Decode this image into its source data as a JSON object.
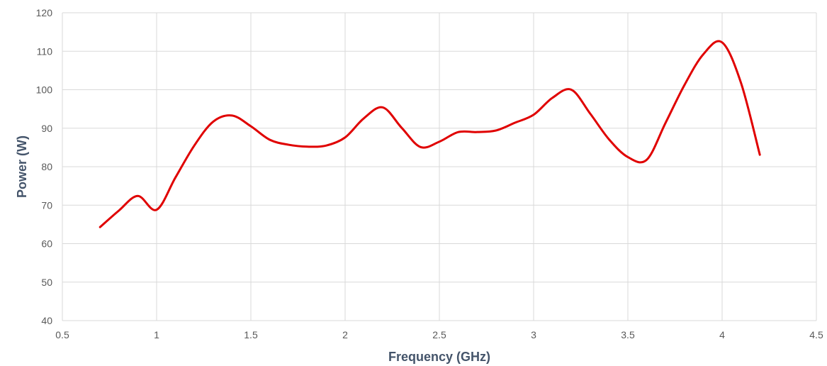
{
  "chart_data": {
    "type": "line",
    "title": "",
    "xlabel": "Frequency (GHz)",
    "ylabel": "Power (W)",
    "xlim": [
      0.5,
      4.5
    ],
    "ylim": [
      40,
      120
    ],
    "xticks": [
      0.5,
      1,
      1.5,
      2,
      2.5,
      3,
      3.5,
      4,
      4.5
    ],
    "yticks": [
      40,
      50,
      60,
      70,
      80,
      90,
      100,
      110,
      120
    ],
    "grid": true,
    "smoothed": true,
    "legend": "none",
    "series": [
      {
        "color": "#e00000",
        "x": [
          0.7,
          0.8,
          0.9,
          1.0,
          1.1,
          1.2,
          1.3,
          1.4,
          1.5,
          1.6,
          1.7,
          1.8,
          1.9,
          2.0,
          2.1,
          2.2,
          2.3,
          2.4,
          2.5,
          2.6,
          2.7,
          2.8,
          2.9,
          3.0,
          3.1,
          3.2,
          3.3,
          3.4,
          3.5,
          3.6,
          3.7,
          3.8,
          3.9,
          4.0,
          4.1,
          4.2
        ],
        "y": [
          64.3,
          68.6,
          72.4,
          68.8,
          77.2,
          85.5,
          91.7,
          93.3,
          90.5,
          87.0,
          85.7,
          85.2,
          85.5,
          87.6,
          92.6,
          95.4,
          90.1,
          85.1,
          86.5,
          89.0,
          89.0,
          89.4,
          91.4,
          93.5,
          97.9,
          100.0,
          93.8,
          87.1,
          82.5,
          81.8,
          91.4,
          101.2,
          109.2,
          112.3,
          101.8,
          83.1
        ]
      }
    ]
  }
}
